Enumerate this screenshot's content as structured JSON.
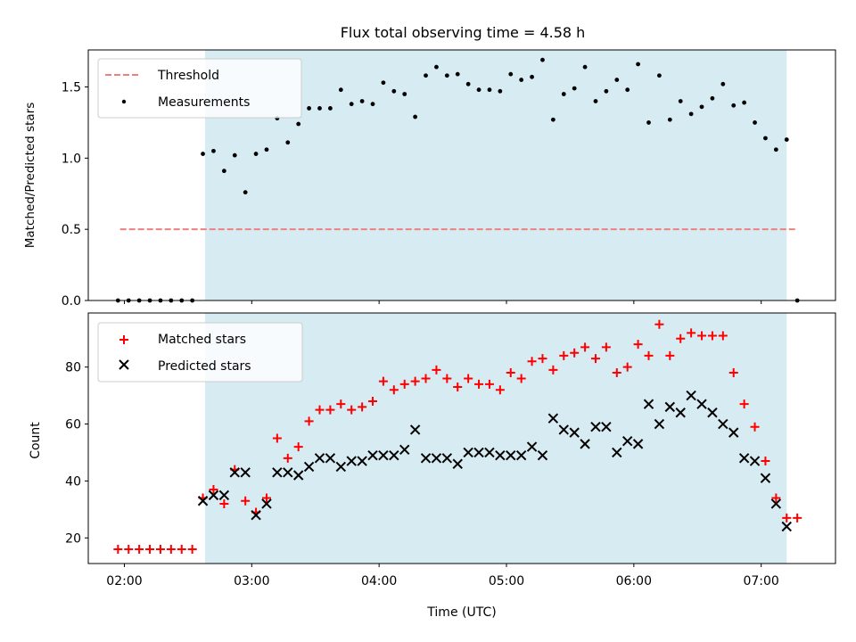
{
  "title": "Flux total observing time = 4.58 h",
  "colors": {
    "span": "#add8e6",
    "threshold": "#f08080",
    "measurement": "#000000",
    "matched": "#ff0000",
    "predicted": "#000000"
  },
  "chart_data": [
    {
      "type": "scatter",
      "title": "Flux total observing time = 4.58 h",
      "xlabel": "",
      "ylabel": "Matched/Predicted stars",
      "xlim": [
        "01:43",
        "07:35"
      ],
      "ylim": [
        0,
        1.76
      ],
      "y_ticks": [
        "0.0",
        "0.5",
        "1.0",
        "1.5"
      ],
      "grid": false,
      "legend_position": "upper-left",
      "observing_span": [
        "02:38",
        "07:12"
      ],
      "threshold": {
        "name": "Threshold",
        "value": 0.5,
        "x_range": [
          "01:58",
          "07:16"
        ],
        "style": "dashed"
      },
      "series": [
        {
          "name": "Measurements",
          "points": [
            [
              "01:57",
              0.0
            ],
            [
              "02:02",
              0.0
            ],
            [
              "02:07",
              0.0
            ],
            [
              "02:12",
              0.0
            ],
            [
              "02:17",
              0.0
            ],
            [
              "02:22",
              0.0
            ],
            [
              "02:27",
              0.0
            ],
            [
              "02:32",
              0.0
            ],
            [
              "02:37",
              1.03
            ],
            [
              "02:42",
              1.05
            ],
            [
              "02:47",
              0.91
            ],
            [
              "02:52",
              1.02
            ],
            [
              "02:57",
              0.76
            ],
            [
              "03:02",
              1.03
            ],
            [
              "03:07",
              1.06
            ],
            [
              "03:12",
              1.28
            ],
            [
              "03:17",
              1.11
            ],
            [
              "03:22",
              1.24
            ],
            [
              "03:27",
              1.35
            ],
            [
              "03:32",
              1.35
            ],
            [
              "03:37",
              1.35
            ],
            [
              "03:42",
              1.48
            ],
            [
              "03:47",
              1.38
            ],
            [
              "03:52",
              1.4
            ],
            [
              "03:57",
              1.38
            ],
            [
              "04:02",
              1.53
            ],
            [
              "04:07",
              1.47
            ],
            [
              "04:12",
              1.45
            ],
            [
              "04:17",
              1.29
            ],
            [
              "04:22",
              1.58
            ],
            [
              "04:27",
              1.64
            ],
            [
              "04:32",
              1.58
            ],
            [
              "04:37",
              1.59
            ],
            [
              "04:42",
              1.52
            ],
            [
              "04:47",
              1.48
            ],
            [
              "04:52",
              1.48
            ],
            [
              "04:57",
              1.47
            ],
            [
              "05:02",
              1.59
            ],
            [
              "05:07",
              1.55
            ],
            [
              "05:12",
              1.57
            ],
            [
              "05:17",
              1.69
            ],
            [
              "05:22",
              1.27
            ],
            [
              "05:27",
              1.45
            ],
            [
              "05:32",
              1.49
            ],
            [
              "05:37",
              1.64
            ],
            [
              "05:42",
              1.4
            ],
            [
              "05:47",
              1.47
            ],
            [
              "05:52",
              1.55
            ],
            [
              "05:57",
              1.48
            ],
            [
              "06:02",
              1.66
            ],
            [
              "06:07",
              1.25
            ],
            [
              "06:12",
              1.58
            ],
            [
              "06:17",
              1.27
            ],
            [
              "06:22",
              1.4
            ],
            [
              "06:27",
              1.31
            ],
            [
              "06:32",
              1.36
            ],
            [
              "06:37",
              1.42
            ],
            [
              "06:42",
              1.52
            ],
            [
              "06:47",
              1.37
            ],
            [
              "06:52",
              1.39
            ],
            [
              "06:57",
              1.25
            ],
            [
              "07:02",
              1.14
            ],
            [
              "07:07",
              1.06
            ],
            [
              "07:12",
              1.13
            ],
            [
              "07:17",
              0.0
            ]
          ]
        }
      ]
    },
    {
      "type": "scatter",
      "title": "",
      "xlabel": "Time (UTC)",
      "ylabel": "Count",
      "xlim": [
        "01:43",
        "07:35"
      ],
      "ylim": [
        11,
        99
      ],
      "x_ticks": [
        "02:00",
        "03:00",
        "04:00",
        "05:00",
        "06:00",
        "07:00"
      ],
      "y_ticks": [
        "20",
        "40",
        "60",
        "80"
      ],
      "grid": false,
      "legend_position": "upper-left",
      "observing_span": [
        "02:38",
        "07:12"
      ],
      "series": [
        {
          "name": "Matched stars",
          "marker": "+",
          "points": [
            [
              "01:57",
              16
            ],
            [
              "02:02",
              16
            ],
            [
              "02:07",
              16
            ],
            [
              "02:12",
              16
            ],
            [
              "02:17",
              16
            ],
            [
              "02:22",
              16
            ],
            [
              "02:27",
              16
            ],
            [
              "02:32",
              16
            ],
            [
              "02:37",
              34
            ],
            [
              "02:42",
              37
            ],
            [
              "02:47",
              32
            ],
            [
              "02:52",
              44
            ],
            [
              "02:57",
              33
            ],
            [
              "03:02",
              29
            ],
            [
              "03:07",
              34
            ],
            [
              "03:12",
              55
            ],
            [
              "03:17",
              48
            ],
            [
              "03:22",
              52
            ],
            [
              "03:27",
              61
            ],
            [
              "03:32",
              65
            ],
            [
              "03:37",
              65
            ],
            [
              "03:42",
              67
            ],
            [
              "03:47",
              65
            ],
            [
              "03:52",
              66
            ],
            [
              "03:57",
              68
            ],
            [
              "04:02",
              75
            ],
            [
              "04:07",
              72
            ],
            [
              "04:12",
              74
            ],
            [
              "04:17",
              75
            ],
            [
              "04:22",
              76
            ],
            [
              "04:27",
              79
            ],
            [
              "04:32",
              76
            ],
            [
              "04:37",
              73
            ],
            [
              "04:42",
              76
            ],
            [
              "04:47",
              74
            ],
            [
              "04:52",
              74
            ],
            [
              "04:57",
              72
            ],
            [
              "05:02",
              78
            ],
            [
              "05:07",
              76
            ],
            [
              "05:12",
              82
            ],
            [
              "05:17",
              83
            ],
            [
              "05:22",
              79
            ],
            [
              "05:27",
              84
            ],
            [
              "05:32",
              85
            ],
            [
              "05:37",
              87
            ],
            [
              "05:42",
              83
            ],
            [
              "05:47",
              87
            ],
            [
              "05:52",
              78
            ],
            [
              "05:57",
              80
            ],
            [
              "06:02",
              88
            ],
            [
              "06:07",
              84
            ],
            [
              "06:12",
              95
            ],
            [
              "06:17",
              84
            ],
            [
              "06:22",
              90
            ],
            [
              "06:27",
              92
            ],
            [
              "06:32",
              91
            ],
            [
              "06:37",
              91
            ],
            [
              "06:42",
              91
            ],
            [
              "06:47",
              78
            ],
            [
              "06:52",
              67
            ],
            [
              "06:57",
              59
            ],
            [
              "07:02",
              47
            ],
            [
              "07:07",
              34
            ],
            [
              "07:12",
              27
            ],
            [
              "07:17",
              27
            ]
          ]
        },
        {
          "name": "Predicted stars",
          "marker": "x",
          "points": [
            [
              "02:37",
              33
            ],
            [
              "02:42",
              35
            ],
            [
              "02:47",
              35
            ],
            [
              "02:52",
              43
            ],
            [
              "02:57",
              43
            ],
            [
              "03:02",
              28
            ],
            [
              "03:07",
              32
            ],
            [
              "03:12",
              43
            ],
            [
              "03:17",
              43
            ],
            [
              "03:22",
              42
            ],
            [
              "03:27",
              45
            ],
            [
              "03:32",
              48
            ],
            [
              "03:37",
              48
            ],
            [
              "03:42",
              45
            ],
            [
              "03:47",
              47
            ],
            [
              "03:52",
              47
            ],
            [
              "03:57",
              49
            ],
            [
              "04:02",
              49
            ],
            [
              "04:07",
              49
            ],
            [
              "04:12",
              51
            ],
            [
              "04:17",
              58
            ],
            [
              "04:22",
              48
            ],
            [
              "04:27",
              48
            ],
            [
              "04:32",
              48
            ],
            [
              "04:37",
              46
            ],
            [
              "04:42",
              50
            ],
            [
              "04:47",
              50
            ],
            [
              "04:52",
              50
            ],
            [
              "04:57",
              49
            ],
            [
              "05:02",
              49
            ],
            [
              "05:07",
              49
            ],
            [
              "05:12",
              52
            ],
            [
              "05:17",
              49
            ],
            [
              "05:22",
              62
            ],
            [
              "05:27",
              58
            ],
            [
              "05:32",
              57
            ],
            [
              "05:37",
              53
            ],
            [
              "05:42",
              59
            ],
            [
              "05:47",
              59
            ],
            [
              "05:52",
              50
            ],
            [
              "05:57",
              54
            ],
            [
              "06:02",
              53
            ],
            [
              "06:07",
              67
            ],
            [
              "06:12",
              60
            ],
            [
              "06:17",
              66
            ],
            [
              "06:22",
              64
            ],
            [
              "06:27",
              70
            ],
            [
              "06:32",
              67
            ],
            [
              "06:37",
              64
            ],
            [
              "06:42",
              60
            ],
            [
              "06:47",
              57
            ],
            [
              "06:52",
              48
            ],
            [
              "06:57",
              47
            ],
            [
              "07:02",
              41
            ],
            [
              "07:07",
              32
            ],
            [
              "07:12",
              24
            ]
          ]
        }
      ]
    }
  ]
}
